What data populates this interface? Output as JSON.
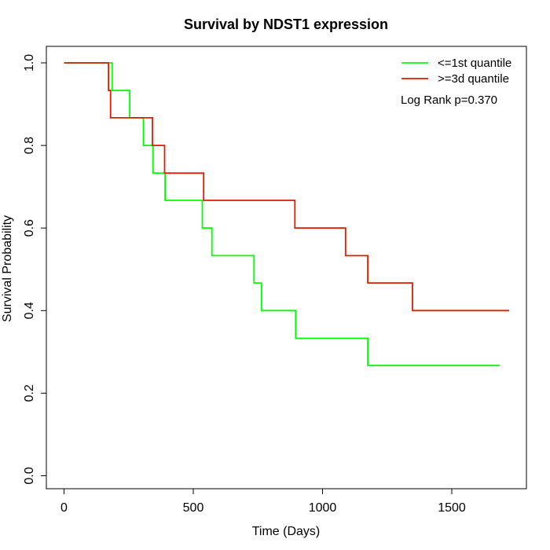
{
  "chart_data": {
    "type": "line",
    "step": true,
    "title": "Survival by NDST1 expression",
    "xlabel": "Time (Days)",
    "ylabel": "Survival Probability",
    "xlim": [
      0,
      1750
    ],
    "ylim": [
      0,
      1.0
    ],
    "xticks": [
      0,
      500,
      1000,
      1500
    ],
    "yticks": [
      0.0,
      0.2,
      0.4,
      0.6,
      0.8,
      1.0
    ],
    "xtick_labels": [
      "0",
      "500",
      "1000",
      "1500"
    ],
    "ytick_labels": [
      "0.0",
      "0.2",
      "0.4",
      "0.6",
      "0.8",
      "1.0"
    ],
    "grid": false,
    "legend_position": "top-right",
    "annotation": "Log Rank p=0.370",
    "series": [
      {
        "name": "<=1st quantile",
        "color": "#00ff00",
        "points": [
          [
            0,
            1.0
          ],
          [
            186,
            1.0
          ],
          [
            186,
            0.933
          ],
          [
            254,
            0.933
          ],
          [
            254,
            0.867
          ],
          [
            307,
            0.867
          ],
          [
            307,
            0.8
          ],
          [
            344,
            0.8
          ],
          [
            344,
            0.733
          ],
          [
            391,
            0.733
          ],
          [
            391,
            0.667
          ],
          [
            535,
            0.667
          ],
          [
            535,
            0.6
          ],
          [
            572,
            0.6
          ],
          [
            572,
            0.533
          ],
          [
            735,
            0.533
          ],
          [
            735,
            0.467
          ],
          [
            764,
            0.467
          ],
          [
            764,
            0.4
          ],
          [
            896,
            0.4
          ],
          [
            896,
            0.333
          ],
          [
            1175,
            0.333
          ],
          [
            1175,
            0.267
          ],
          [
            1686,
            0.267
          ]
        ]
      },
      {
        "name": ">=3d quantile",
        "color": "#dd1c00",
        "points": [
          [
            0,
            1.0
          ],
          [
            172,
            1.0
          ],
          [
            172,
            0.933
          ],
          [
            180,
            0.933
          ],
          [
            180,
            0.867
          ],
          [
            342,
            0.867
          ],
          [
            342,
            0.8
          ],
          [
            389,
            0.8
          ],
          [
            389,
            0.733
          ],
          [
            540,
            0.733
          ],
          [
            540,
            0.667
          ],
          [
            893,
            0.667
          ],
          [
            893,
            0.6
          ],
          [
            1089,
            0.6
          ],
          [
            1089,
            0.533
          ],
          [
            1175,
            0.533
          ],
          [
            1175,
            0.467
          ],
          [
            1348,
            0.467
          ],
          [
            1348,
            0.4
          ],
          [
            1722,
            0.4
          ]
        ]
      }
    ]
  }
}
